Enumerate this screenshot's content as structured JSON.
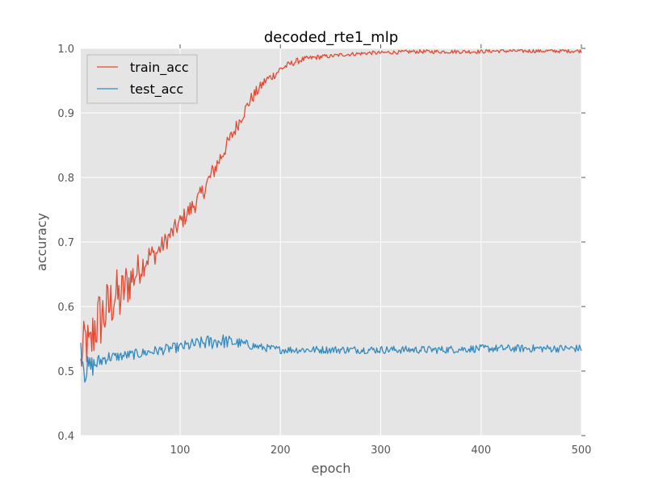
{
  "chart_data": {
    "type": "line",
    "title": "decoded_rte1_mlp",
    "xlabel": "epoch",
    "ylabel": "accuracy",
    "xlim": [
      1,
      500
    ],
    "ylim": [
      0.4,
      1.0
    ],
    "xticks": [
      100,
      200,
      300,
      400,
      500
    ],
    "xtick_labels": [
      "100",
      "200",
      "300",
      "400",
      "500"
    ],
    "yticks": [
      0.4,
      0.5,
      0.6,
      0.7,
      0.8,
      0.9,
      1.0
    ],
    "ytick_labels": [
      "0.4",
      "0.5",
      "0.6",
      "0.7",
      "0.8",
      "0.9",
      "1.0"
    ],
    "grid": true,
    "legend_position": "top-left",
    "series": [
      {
        "name": "train_acc",
        "color": "#E24A33",
        "x": [
          1,
          5,
          10,
          15,
          20,
          25,
          30,
          35,
          40,
          45,
          50,
          55,
          60,
          65,
          70,
          75,
          80,
          85,
          90,
          95,
          100,
          105,
          110,
          115,
          120,
          125,
          130,
          135,
          140,
          145,
          150,
          155,
          160,
          165,
          170,
          175,
          180,
          185,
          190,
          195,
          200,
          210,
          220,
          230,
          240,
          250,
          260,
          270,
          280,
          290,
          300,
          310,
          320,
          330,
          340,
          350,
          360,
          370,
          380,
          390,
          400,
          410,
          420,
          430,
          440,
          450,
          460,
          470,
          480,
          490,
          500
        ],
        "y": [
          0.51,
          0.55,
          0.53,
          0.57,
          0.58,
          0.59,
          0.6,
          0.62,
          0.61,
          0.63,
          0.64,
          0.65,
          0.66,
          0.67,
          0.68,
          0.68,
          0.69,
          0.7,
          0.71,
          0.72,
          0.73,
          0.74,
          0.75,
          0.76,
          0.77,
          0.785,
          0.8,
          0.815,
          0.83,
          0.845,
          0.86,
          0.875,
          0.89,
          0.905,
          0.92,
          0.93,
          0.94,
          0.95,
          0.955,
          0.96,
          0.968,
          0.976,
          0.982,
          0.985,
          0.987,
          0.988,
          0.99,
          0.991,
          0.992,
          0.993,
          0.993,
          0.994,
          0.994,
          0.995,
          0.995,
          0.995,
          0.995,
          0.995,
          0.995,
          0.995,
          0.995,
          0.996,
          0.996,
          0.996,
          0.996,
          0.996,
          0.996,
          0.996,
          0.996,
          0.996,
          0.996
        ],
        "noise": [
          0.03,
          0.04,
          0.045,
          0.05,
          0.05,
          0.05,
          0.045,
          0.045,
          0.04,
          0.04,
          0.035,
          0.03,
          0.025,
          0.02,
          0.02,
          0.015,
          0.015,
          0.015,
          0.015,
          0.015,
          0.015,
          0.015,
          0.015,
          0.015,
          0.015,
          0.015,
          0.015,
          0.015,
          0.015,
          0.012,
          0.012,
          0.012,
          0.01,
          0.01,
          0.01,
          0.01,
          0.008,
          0.008,
          0.008,
          0.006,
          0.006,
          0.005,
          0.005,
          0.004,
          0.004,
          0.003,
          0.003,
          0.003,
          0.003,
          0.003,
          0.003,
          0.003,
          0.003,
          0.003,
          0.003,
          0.003,
          0.003,
          0.003,
          0.003,
          0.003,
          0.003,
          0.003,
          0.003,
          0.003,
          0.003,
          0.003,
          0.003,
          0.003,
          0.003,
          0.003,
          0.003
        ]
      },
      {
        "name": "test_acc",
        "color": "#348ABD",
        "x": [
          1,
          5,
          10,
          15,
          20,
          25,
          30,
          35,
          40,
          45,
          50,
          60,
          70,
          80,
          90,
          100,
          110,
          120,
          130,
          140,
          150,
          160,
          170,
          180,
          190,
          200,
          220,
          240,
          260,
          280,
          300,
          320,
          340,
          360,
          380,
          400,
          420,
          440,
          460,
          480,
          500
        ],
        "y": [
          0.54,
          0.5,
          0.505,
          0.51,
          0.515,
          0.52,
          0.522,
          0.522,
          0.523,
          0.524,
          0.525,
          0.527,
          0.53,
          0.532,
          0.535,
          0.537,
          0.54,
          0.543,
          0.545,
          0.547,
          0.545,
          0.543,
          0.54,
          0.537,
          0.535,
          0.533,
          0.533,
          0.533,
          0.533,
          0.533,
          0.533,
          0.533,
          0.533,
          0.533,
          0.534,
          0.535,
          0.535,
          0.535,
          0.535,
          0.535,
          0.535
        ],
        "noise": [
          0.02,
          0.02,
          0.02,
          0.015,
          0.012,
          0.01,
          0.01,
          0.008,
          0.008,
          0.008,
          0.008,
          0.008,
          0.008,
          0.008,
          0.008,
          0.008,
          0.01,
          0.01,
          0.012,
          0.012,
          0.01,
          0.008,
          0.007,
          0.006,
          0.006,
          0.006,
          0.006,
          0.006,
          0.006,
          0.006,
          0.006,
          0.006,
          0.006,
          0.006,
          0.006,
          0.006,
          0.006,
          0.006,
          0.006,
          0.006,
          0.006
        ]
      }
    ]
  },
  "colors": {
    "plot_background": "#E5E5E5",
    "grid": "#FFFFFF",
    "tick_text": "#555555"
  }
}
